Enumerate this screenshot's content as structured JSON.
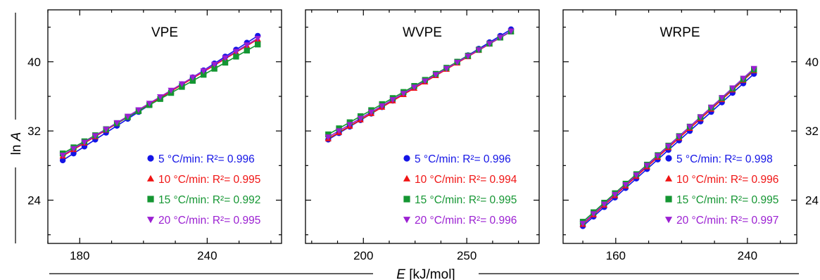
{
  "figure": {
    "ylabel_prefix": "ln ",
    "ylabel_var": "A",
    "xlabel_var": "E",
    "xlabel_unit": " [kJ/mol]"
  },
  "colors": {
    "5": "#1414e6",
    "10": "#f01414",
    "15": "#149632",
    "20": "#9b1fd2",
    "axis": "#000000"
  },
  "chart_data": [
    {
      "type": "scatter",
      "title": "VPE",
      "xlim": [
        165,
        275
      ],
      "ylim": [
        19,
        46
      ],
      "xticks": [
        180,
        240
      ],
      "yticks": [
        24,
        32,
        40
      ],
      "ytick_side": "left",
      "series": [
        {
          "name": "5 °C/min: R²= 0.996",
          "rate": "5",
          "marker": "circle",
          "x": [
            172,
            177.1,
            182.2,
            187.3,
            192.4,
            197.5,
            202.6,
            207.7,
            212.8,
            217.9,
            223,
            228.1,
            233.2,
            238.3,
            243.4,
            248.5,
            253.6,
            258.7,
            263.8
          ],
          "y": [
            28.6,
            29.4,
            30.2,
            31,
            31.8,
            32.6,
            33.4,
            34.2,
            35,
            35.8,
            36.6,
            37.4,
            38.2,
            39,
            39.8,
            40.6,
            41.4,
            42.2,
            43
          ]
        },
        {
          "name": "10 °C/min: R²= 0.995",
          "rate": "10",
          "marker": "triangle-up",
          "x": [
            172,
            177.1,
            182.2,
            187.3,
            192.4,
            197.5,
            202.6,
            207.7,
            212.8,
            217.9,
            223,
            228.1,
            233.2,
            238.3,
            243.4,
            248.5,
            253.6,
            258.7,
            263.8
          ],
          "y": [
            29.1,
            29.85,
            30.6,
            31.35,
            32.1,
            32.85,
            33.6,
            34.35,
            35.1,
            35.85,
            36.6,
            37.35,
            38.1,
            38.85,
            39.6,
            40.35,
            41.1,
            41.85,
            42.6
          ]
        },
        {
          "name": "15 °C/min: R²= 0.992",
          "rate": "15",
          "marker": "square",
          "x": [
            172,
            177.1,
            182.2,
            187.3,
            192.4,
            197.5,
            202.6,
            207.7,
            212.8,
            217.9,
            223,
            228.1,
            233.2,
            238.3,
            243.4,
            248.5,
            253.6,
            258.7,
            263.8
          ],
          "y": [
            29.4,
            30.1,
            30.8,
            31.5,
            32.2,
            32.9,
            33.6,
            34.3,
            35,
            35.7,
            36.4,
            37.1,
            37.8,
            38.5,
            39.2,
            39.9,
            40.6,
            41.3,
            42
          ]
        },
        {
          "name": "20 °C/min: R²= 0.995",
          "rate": "20",
          "marker": "triangle-down",
          "x": [
            172,
            177.1,
            182.2,
            187.3,
            192.4,
            197.5,
            202.6,
            207.7,
            212.8,
            217.9,
            223,
            228.1,
            233.2,
            238.3,
            243.4,
            248.5,
            253.6,
            258.7,
            263.8
          ],
          "y": [
            29.2,
            29.95,
            30.7,
            31.45,
            32.2,
            32.95,
            33.7,
            34.45,
            35.2,
            35.95,
            36.7,
            37.45,
            38.2,
            38.95,
            39.7,
            40.45,
            41.2,
            41.95,
            42.7
          ]
        }
      ]
    },
    {
      "type": "scatter",
      "title": "WVPE",
      "xlim": [
        172,
        285
      ],
      "ylim": [
        19,
        46
      ],
      "xticks": [
        200,
        250
      ],
      "yticks": [
        24,
        32,
        40
      ],
      "ytick_side": "none",
      "series": [
        {
          "name": "5 °C/min: R²= 0.996",
          "rate": "5",
          "marker": "circle",
          "x": [
            183,
            188.2,
            193.4,
            198.6,
            203.8,
            209,
            214.2,
            219.4,
            224.6,
            229.8,
            235,
            240.2,
            245.4,
            250.6,
            255.8,
            261,
            266.2,
            271.4
          ],
          "y": [
            31,
            31.75,
            32.5,
            33.25,
            34,
            34.75,
            35.5,
            36.25,
            37,
            37.75,
            38.5,
            39.25,
            40,
            40.75,
            41.5,
            42.25,
            43,
            43.75
          ]
        },
        {
          "name": "10 °C/min: R²= 0.994",
          "rate": "10",
          "marker": "triangle-up",
          "x": [
            183,
            188.2,
            193.4,
            198.6,
            203.8,
            209,
            214.2,
            219.4,
            224.6,
            229.8,
            235,
            240.2,
            245.4,
            250.6,
            255.8,
            261,
            266.2,
            271.4
          ],
          "y": [
            31.1,
            31.83,
            32.56,
            33.29,
            34.02,
            34.75,
            35.48,
            36.21,
            36.94,
            37.67,
            38.4,
            39.13,
            39.86,
            40.59,
            41.32,
            42.05,
            42.78,
            43.51
          ]
        },
        {
          "name": "15 °C/min: R²= 0.995",
          "rate": "15",
          "marker": "square",
          "x": [
            183,
            188.2,
            193.4,
            198.6,
            203.8,
            209,
            214.2,
            219.4,
            224.6,
            229.8,
            235,
            240.2,
            245.4,
            250.6,
            255.8,
            261,
            266.2,
            271.4
          ],
          "y": [
            31.6,
            32.3,
            33,
            33.7,
            34.4,
            35.1,
            35.8,
            36.5,
            37.2,
            37.9,
            38.6,
            39.3,
            40,
            40.7,
            41.4,
            42.1,
            42.8,
            43.5
          ]
        },
        {
          "name": "20 °C/min: R²= 0.996",
          "rate": "20",
          "marker": "triangle-down",
          "x": [
            183,
            188.2,
            193.4,
            198.6,
            203.8,
            209,
            214.2,
            219.4,
            224.6,
            229.8,
            235,
            240.2,
            245.4,
            250.6,
            255.8,
            261,
            266.2,
            271.4
          ],
          "y": [
            31.3,
            32.02,
            32.74,
            33.46,
            34.18,
            34.9,
            35.62,
            36.34,
            37.06,
            37.78,
            38.5,
            39.22,
            39.94,
            40.66,
            41.38,
            42.1,
            42.82,
            43.54
          ]
        }
      ]
    },
    {
      "type": "scatter",
      "title": "WRPE",
      "xlim": [
        128,
        270
      ],
      "ylim": [
        19,
        46
      ],
      "xticks": [
        160,
        240
      ],
      "yticks": [
        24,
        32,
        40
      ],
      "ytick_side": "right",
      "series": [
        {
          "name": "5 °C/min: R²= 0.998",
          "rate": "5",
          "marker": "circle",
          "x": [
            140,
            146.5,
            153,
            159.5,
            166,
            172.5,
            179,
            185.5,
            192,
            198.5,
            205,
            211.5,
            218,
            224.5,
            231,
            237.5,
            244
          ],
          "y": [
            21,
            22.1,
            23.2,
            24.3,
            25.4,
            26.5,
            27.6,
            28.7,
            29.8,
            30.9,
            32,
            33.1,
            34.2,
            35.3,
            36.4,
            37.5,
            38.6
          ]
        },
        {
          "name": "10 °C/min: R²= 0.996",
          "rate": "10",
          "marker": "triangle-up",
          "x": [
            140,
            146.5,
            153,
            159.5,
            166,
            172.5,
            179,
            185.5,
            192,
            198.5,
            205,
            211.5,
            218,
            224.5,
            231,
            237.5,
            244
          ],
          "y": [
            21.2,
            22.31,
            23.42,
            24.53,
            25.64,
            26.75,
            27.86,
            28.97,
            30.08,
            31.19,
            32.3,
            33.41,
            34.52,
            35.63,
            36.74,
            37.85,
            38.96
          ]
        },
        {
          "name": "15 °C/min: R²= 0.995",
          "rate": "15",
          "marker": "square",
          "x": [
            140,
            146.5,
            153,
            159.5,
            166,
            172.5,
            179,
            185.5,
            192,
            198.5,
            205,
            211.5,
            218,
            224.5,
            231,
            237.5,
            244
          ],
          "y": [
            21.5,
            22.6,
            23.7,
            24.8,
            25.9,
            27,
            28.1,
            29.2,
            30.3,
            31.4,
            32.5,
            33.6,
            34.7,
            35.8,
            36.9,
            38,
            39.1
          ]
        },
        {
          "name": "20 °C/min: R²= 0.997",
          "rate": "20",
          "marker": "triangle-down",
          "x": [
            140,
            146.5,
            153,
            159.5,
            166,
            172.5,
            179,
            185.5,
            192,
            198.5,
            205,
            211.5,
            218,
            224.5,
            231,
            237.5,
            244
          ],
          "y": [
            21.3,
            22.42,
            23.54,
            24.66,
            25.78,
            26.9,
            28.02,
            29.14,
            30.26,
            31.38,
            32.5,
            33.62,
            34.74,
            35.86,
            36.98,
            38.1,
            39.22
          ]
        }
      ]
    }
  ]
}
